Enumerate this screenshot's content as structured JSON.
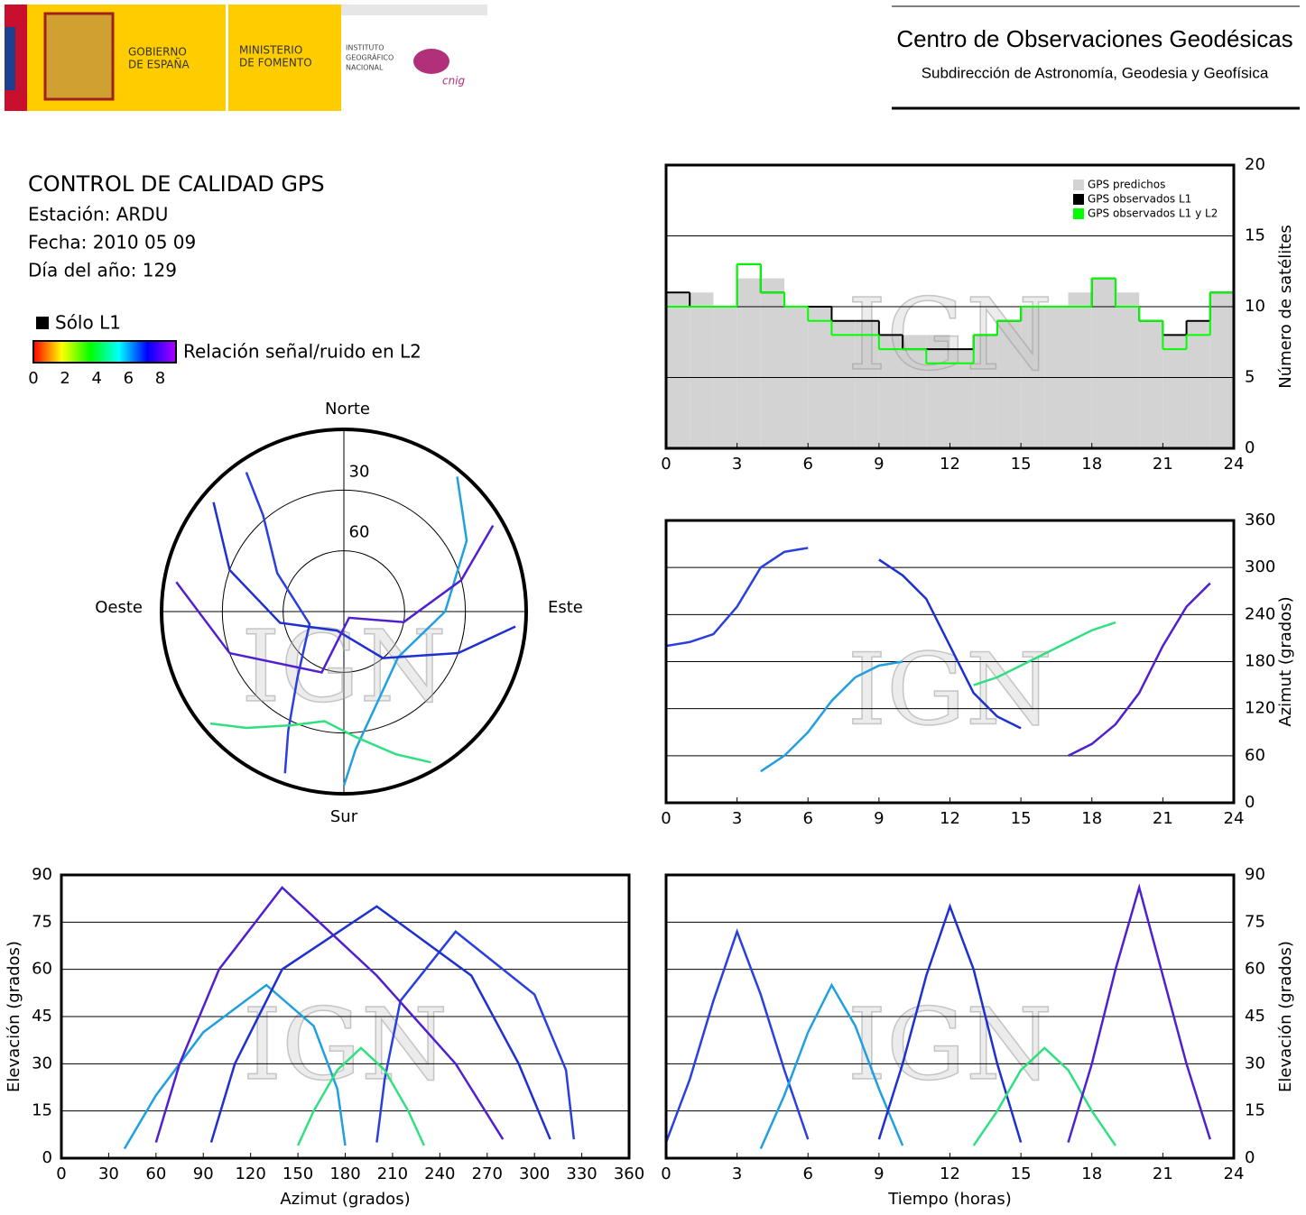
{
  "header": {
    "government": [
      "GOBIERNO",
      "DE ESPAÑA"
    ],
    "ministry": [
      "MINISTERIO",
      "DE FOMENTO"
    ],
    "institute": [
      "INSTITUTO",
      "GEOGRÁFICO",
      "NACIONAL"
    ],
    "cnig": "cnig",
    "center": "Centro de Observaciones Geodésicas",
    "subdirectorate": "Subdirección de Astronomía, Geodesia y Geofísica"
  },
  "info": {
    "title": "CONTROL DE CALIDAD GPS",
    "station": "Estación: ARDU",
    "date": "Fecha: 2010 05 09",
    "day_of_year": "Día del año: 129",
    "l1_only": "Sólo L1",
    "colorbar": {
      "label": "Relación señal/ruido en L2",
      "clim": [
        0,
        9
      ],
      "ticks": [
        0,
        2,
        4,
        6,
        8
      ],
      "colors": [
        "#ff0000",
        "#ffff00",
        "#00ff00",
        "#00ffff",
        "#0000ff",
        "#b000ff"
      ]
    }
  },
  "chart_data": [
    {
      "type": "polar",
      "watermark": "IGN",
      "directions": {
        "north": "Norte",
        "south": "Sur",
        "east": "Este",
        "west": "Oeste"
      },
      "rlim": [
        0,
        90
      ],
      "rticks": [
        30,
        60
      ],
      "series": [
        {
          "color": "#2a3fe0",
          "azimuth": [
            200,
            205,
            215,
            250,
            300,
            320,
            325
          ],
          "elevation": [
            5,
            25,
            50,
            72,
            52,
            28,
            6
          ]
        },
        {
          "color": "#20a0e0",
          "azimuth": [
            40,
            60,
            90,
            130,
            160,
            175,
            180
          ],
          "elevation": [
            3,
            20,
            40,
            55,
            42,
            22,
            4
          ]
        },
        {
          "color": "#1e30d0",
          "azimuth": [
            310,
            290,
            260,
            200,
            140,
            110,
            95
          ],
          "elevation": [
            6,
            30,
            58,
            80,
            60,
            30,
            5
          ]
        },
        {
          "color": "#30e080",
          "azimuth": [
            150,
            160,
            175,
            190,
            205,
            220,
            230
          ],
          "elevation": [
            4,
            15,
            28,
            35,
            28,
            15,
            4
          ]
        },
        {
          "color": "#5020d0",
          "azimuth": [
            60,
            75,
            100,
            140,
            200,
            250,
            280
          ],
          "elevation": [
            5,
            30,
            60,
            86,
            58,
            30,
            6
          ]
        }
      ]
    },
    {
      "type": "step",
      "watermark": "IGN",
      "ylabel": "Número de satélites",
      "y_axis_side": "right",
      "legend": "upper right",
      "grid": true,
      "xlim": [
        0,
        24
      ],
      "xticks": [
        0,
        3,
        6,
        9,
        12,
        15,
        18,
        21,
        24
      ],
      "ylim": [
        0,
        20
      ],
      "yticks": [
        0,
        5,
        10,
        15,
        20
      ],
      "x": [
        0,
        1,
        2,
        3,
        4,
        5,
        6,
        7,
        8,
        9,
        10,
        11,
        12,
        13,
        14,
        15,
        16,
        17,
        18,
        19,
        20,
        21,
        22,
        23
      ],
      "series": [
        {
          "name": "GPS predichos",
          "color": "#d3d3d3",
          "values": [
            11,
            11,
            10,
            12,
            12,
            10,
            10,
            9,
            9,
            8,
            8,
            8,
            7,
            8,
            9,
            10,
            10,
            11,
            12,
            11,
            9,
            8,
            9,
            11
          ]
        },
        {
          "name": "GPS observados L1",
          "color": "#000000",
          "values": [
            11,
            10,
            10,
            13,
            11,
            10,
            10,
            9,
            9,
            8,
            7,
            7,
            7,
            8,
            9,
            10,
            10,
            10,
            12,
            10,
            9,
            8,
            9,
            11
          ]
        },
        {
          "name": "GPS observados L1 y L2",
          "color": "#00ff00",
          "values": [
            10,
            10,
            10,
            13,
            11,
            10,
            9,
            8,
            8,
            7,
            7,
            6,
            6,
            8,
            9,
            10,
            10,
            10,
            12,
            10,
            9,
            7,
            8,
            11
          ]
        }
      ]
    },
    {
      "type": "line",
      "watermark": "IGN",
      "ylabel": "Azimut (grados)",
      "y_axis_side": "right",
      "grid": true,
      "xlim": [
        0,
        24
      ],
      "xticks": [
        0,
        3,
        6,
        9,
        12,
        15,
        18,
        21,
        24
      ],
      "ylim": [
        0,
        360
      ],
      "yticks": [
        0,
        60,
        120,
        180,
        240,
        300,
        360
      ],
      "series": [
        {
          "color": "#2a3fe0",
          "x": [
            0,
            1,
            2,
            3,
            4,
            5,
            6
          ],
          "values": [
            200,
            205,
            215,
            250,
            300,
            320,
            325
          ]
        },
        {
          "color": "#20a0e0",
          "x": [
            4,
            5,
            6,
            7,
            8,
            9,
            10
          ],
          "values": [
            40,
            60,
            90,
            130,
            160,
            175,
            180
          ]
        },
        {
          "color": "#1e30d0",
          "x": [
            9,
            10,
            11,
            12,
            13,
            14,
            15
          ],
          "values": [
            310,
            290,
            260,
            200,
            140,
            110,
            95
          ]
        },
        {
          "color": "#30e080",
          "x": [
            13,
            14,
            15,
            16,
            17,
            18,
            19
          ],
          "values": [
            150,
            160,
            175,
            190,
            205,
            220,
            230
          ]
        },
        {
          "color": "#5020d0",
          "x": [
            17,
            18,
            19,
            20,
            21,
            22,
            23
          ],
          "values": [
            60,
            75,
            100,
            140,
            200,
            250,
            280
          ]
        }
      ]
    },
    {
      "type": "line",
      "watermark": "IGN",
      "xlabel": "Azimut (grados)",
      "ylabel": "Elevación (grados)",
      "y_axis_side": "left",
      "grid": true,
      "xlim": [
        0,
        360
      ],
      "xticks": [
        0,
        30,
        60,
        90,
        120,
        150,
        180,
        210,
        240,
        270,
        300,
        330,
        360
      ],
      "ylim": [
        0,
        90
      ],
      "yticks": [
        0,
        15,
        30,
        45,
        60,
        75,
        90
      ],
      "series": [
        {
          "color": "#2a3fe0",
          "x": [
            200,
            205,
            215,
            250,
            300,
            320,
            325
          ],
          "values": [
            5,
            25,
            50,
            72,
            52,
            28,
            6
          ]
        },
        {
          "color": "#20a0e0",
          "x": [
            40,
            60,
            90,
            130,
            160,
            175,
            180
          ],
          "values": [
            3,
            20,
            40,
            55,
            42,
            22,
            4
          ]
        },
        {
          "color": "#1e30d0",
          "x": [
            310,
            290,
            260,
            200,
            140,
            110,
            95
          ],
          "values": [
            6,
            30,
            58,
            80,
            60,
            30,
            5
          ]
        },
        {
          "color": "#30e080",
          "x": [
            150,
            160,
            175,
            190,
            205,
            220,
            230
          ],
          "values": [
            4,
            15,
            28,
            35,
            28,
            15,
            4
          ]
        },
        {
          "color": "#5020d0",
          "x": [
            60,
            75,
            100,
            140,
            200,
            250,
            280
          ],
          "values": [
            5,
            30,
            60,
            86,
            58,
            30,
            6
          ]
        }
      ]
    },
    {
      "type": "line",
      "watermark": "IGN",
      "xlabel": "Tiempo (horas)",
      "ylabel": "Elevación (grados)",
      "y_axis_side": "right",
      "grid": true,
      "xlim": [
        0,
        24
      ],
      "xticks": [
        0,
        3,
        6,
        9,
        12,
        15,
        18,
        21,
        24
      ],
      "ylim": [
        0,
        90
      ],
      "yticks": [
        0,
        15,
        30,
        45,
        60,
        75,
        90
      ],
      "series": [
        {
          "color": "#2a3fe0",
          "x": [
            0,
            1,
            2,
            3,
            4,
            5,
            6
          ],
          "values": [
            5,
            25,
            50,
            72,
            52,
            28,
            6
          ]
        },
        {
          "color": "#20a0e0",
          "x": [
            4,
            5,
            6,
            7,
            8,
            9,
            10
          ],
          "values": [
            3,
            20,
            40,
            55,
            42,
            22,
            4
          ]
        },
        {
          "color": "#1e30d0",
          "x": [
            9,
            10,
            11,
            12,
            13,
            14,
            15
          ],
          "values": [
            6,
            30,
            58,
            80,
            60,
            30,
            5
          ]
        },
        {
          "color": "#30e080",
          "x": [
            13,
            14,
            15,
            16,
            17,
            18,
            19
          ],
          "values": [
            4,
            15,
            28,
            35,
            28,
            15,
            4
          ]
        },
        {
          "color": "#5020d0",
          "x": [
            17,
            18,
            19,
            20,
            21,
            22,
            23
          ],
          "values": [
            5,
            30,
            60,
            86,
            58,
            30,
            6
          ]
        }
      ]
    }
  ]
}
